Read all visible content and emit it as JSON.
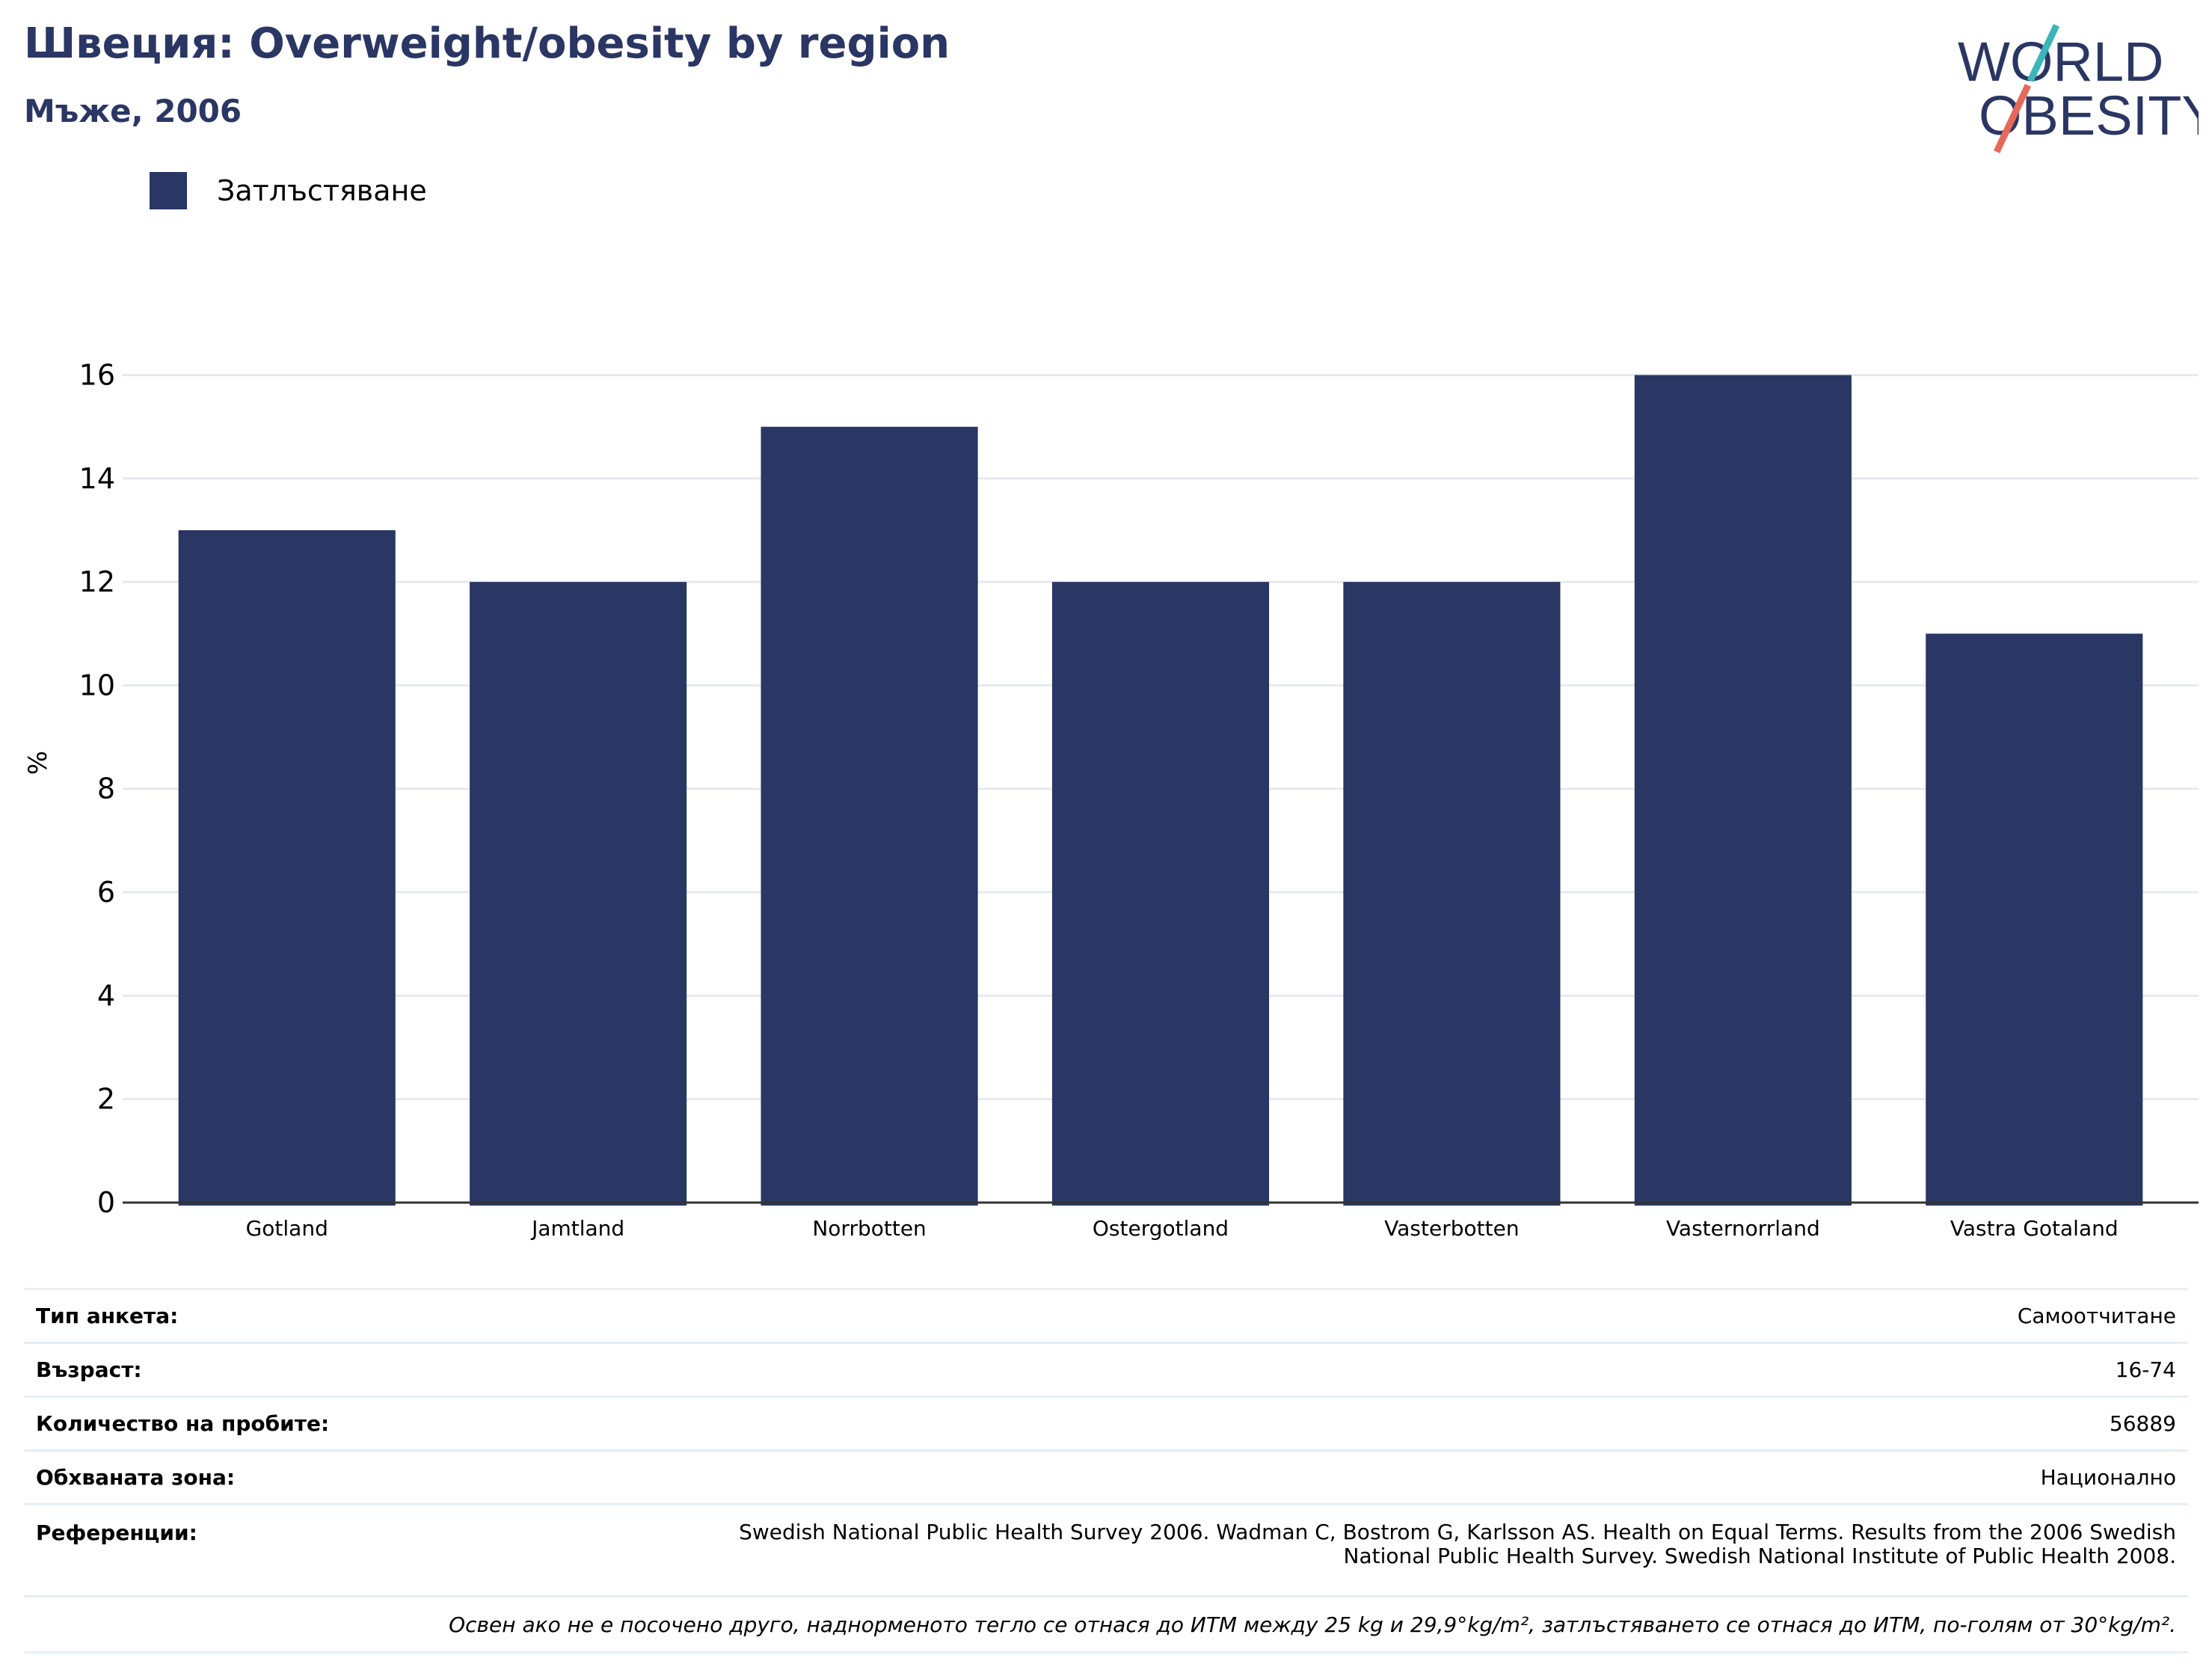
{
  "header": {
    "title": "Швеция: Overweight/obesity by region",
    "subtitle": "Мъже, 2006"
  },
  "logo": {
    "line1": "WORLD",
    "line2": "OBESITY",
    "slash_colors": [
      "#3bb5b7",
      "#e5695a"
    ]
  },
  "legend": {
    "label": "Затлъстяване",
    "color": "#2a3663"
  },
  "chart_data": {
    "type": "bar",
    "title": "Швеция: Overweight/obesity by region",
    "subtitle": "Мъже, 2006",
    "ylabel": "%",
    "xlabel": "",
    "ylim": [
      0,
      16
    ],
    "yticks": [
      0,
      2,
      4,
      6,
      8,
      10,
      12,
      14,
      16
    ],
    "grid": true,
    "legend_position": "top-left",
    "categories": [
      "Gotland",
      "Jamtland",
      "Norrbotten",
      "Ostergotland",
      "Vasterbotten",
      "Vasternorrland",
      "Vastra Gotaland"
    ],
    "series": [
      {
        "name": "Затлъстяване",
        "color": "#2a3663",
        "values": [
          13,
          12,
          15,
          12,
          12,
          16,
          11
        ]
      }
    ]
  },
  "info": {
    "rows": [
      {
        "label": "Тип анкета:",
        "value": "Самоотчитане"
      },
      {
        "label": "Възраст:",
        "value": "16-74"
      },
      {
        "label": "Количество на пробите:",
        "value": "56889"
      },
      {
        "label": "Обхваната зона:",
        "value": "Национално"
      }
    ],
    "references_label": "Референции:",
    "references_line1": "Swedish National Public Health Survey 2006. Wadman C, Bostrom G, Karlsson AS. Health on Equal Terms. Results from the 2006 Swedish",
    "references_line2": "National Public Health Survey. Swedish National Institute of Public Health 2008.",
    "note": "Освен ако не е посочено друго, наднорменото тегло се отнася до ИТМ между 25 kg и 29,9°kg/m², затлъстяването се отнася до ИТМ, по-голям от 30°kg/m²."
  }
}
